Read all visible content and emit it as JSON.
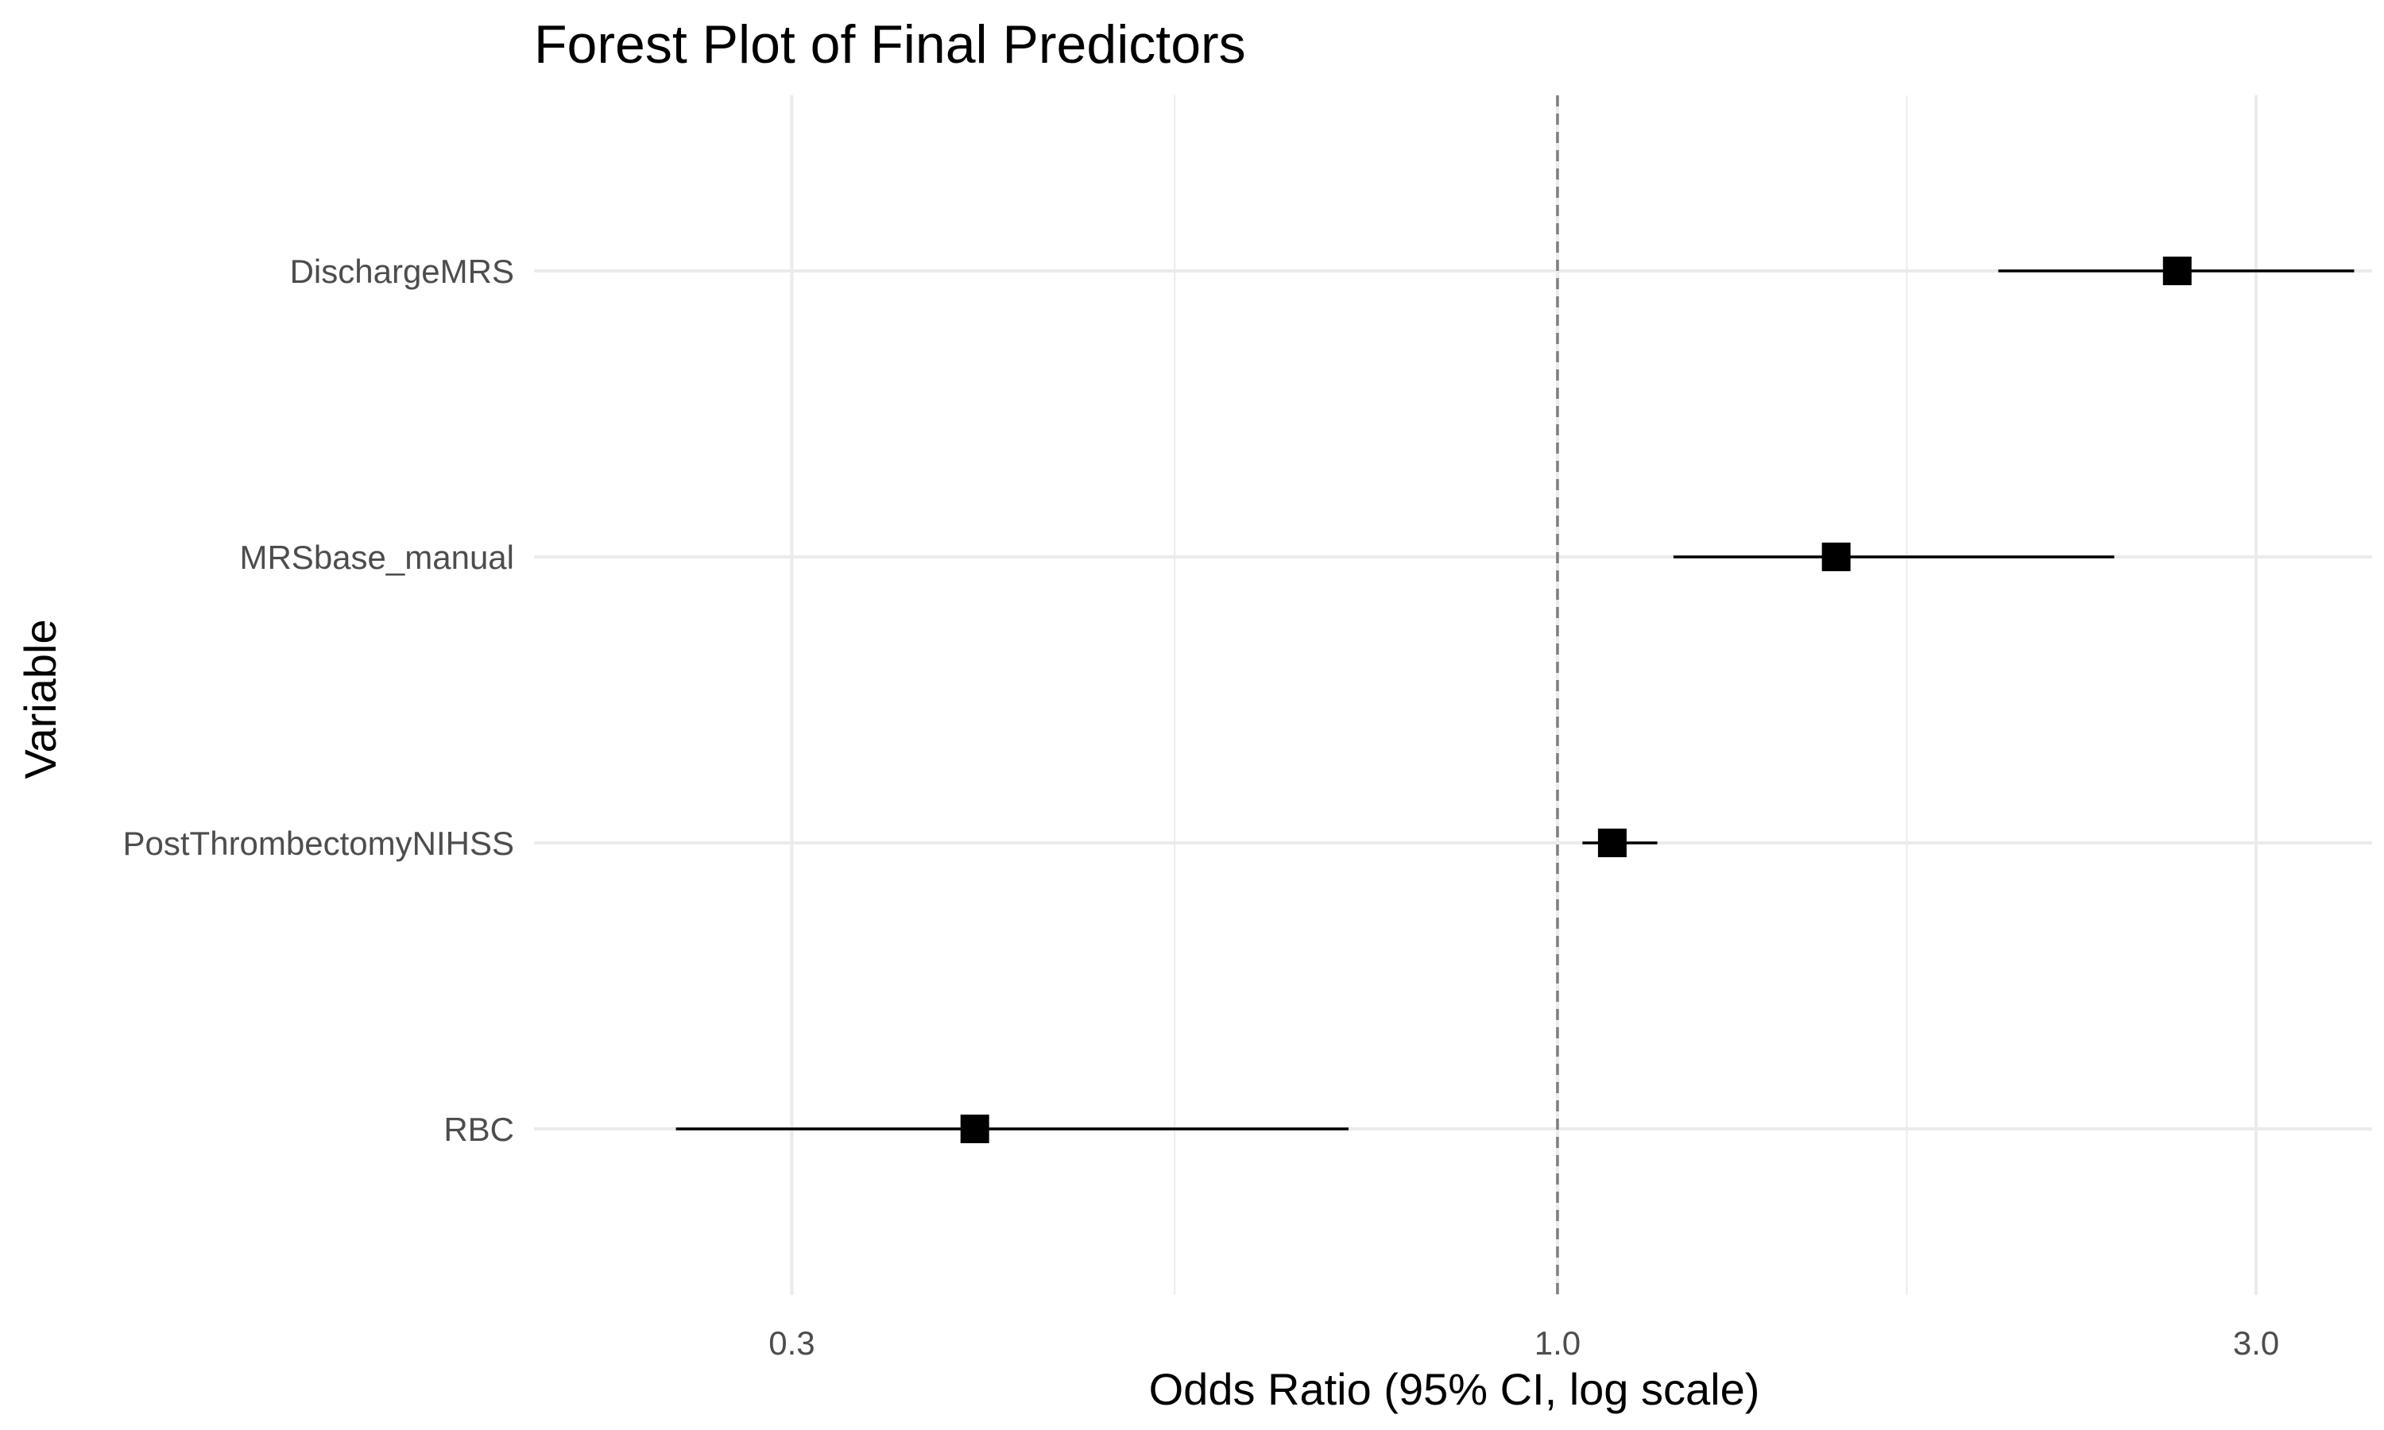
{
  "chart_data": {
    "type": "forest",
    "title": "Forest Plot of Final Predictors",
    "xlabel": "Odds Ratio (95% CI, log scale)",
    "ylabel": "Variable",
    "x_scale": "log",
    "xlim": [
      0.2,
      3.6
    ],
    "x_ticks": [
      0.3,
      1.0,
      3.0
    ],
    "x_tick_labels": [
      "0.3",
      "1.0",
      "3.0"
    ],
    "reference_line": 1.0,
    "grid": true,
    "categories": [
      "DischargeMRS",
      "MRSbase_manual",
      "PostThrombectomyNIHSS",
      "RBC"
    ],
    "series": [
      {
        "estimate": [
          2.65,
          1.55,
          1.09,
          0.4
        ],
        "ci_lower": [
          2.0,
          1.2,
          1.04,
          0.25
        ],
        "ci_upper": [
          3.5,
          2.4,
          1.17,
          0.72
        ]
      }
    ]
  }
}
